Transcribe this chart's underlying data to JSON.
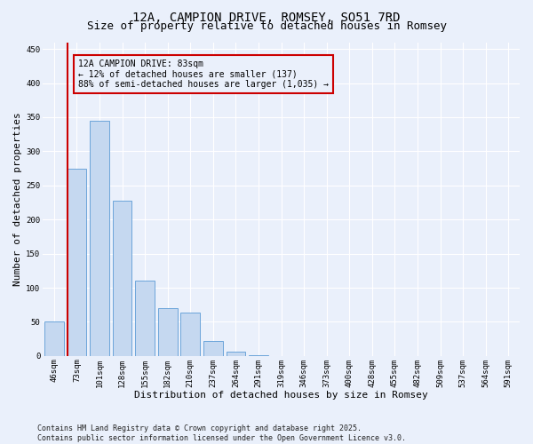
{
  "title": "12A, CAMPION DRIVE, ROMSEY, SO51 7RD",
  "subtitle": "Size of property relative to detached houses in Romsey",
  "xlabel": "Distribution of detached houses by size in Romsey",
  "ylabel": "Number of detached properties",
  "categories": [
    "46sqm",
    "73sqm",
    "101sqm",
    "128sqm",
    "155sqm",
    "182sqm",
    "210sqm",
    "237sqm",
    "264sqm",
    "291sqm",
    "319sqm",
    "346sqm",
    "373sqm",
    "400sqm",
    "428sqm",
    "455sqm",
    "482sqm",
    "509sqm",
    "537sqm",
    "564sqm",
    "591sqm"
  ],
  "values": [
    50,
    275,
    345,
    227,
    110,
    70,
    63,
    22,
    6,
    1,
    0,
    0,
    0,
    0,
    0,
    0,
    0,
    0,
    0,
    0,
    0
  ],
  "bar_color": "#c5d8f0",
  "bar_edge_color": "#5b9bd5",
  "background_color": "#eaf0fb",
  "grid_color": "#ffffff",
  "property_line_color": "#cc0000",
  "annotation_text": "12A CAMPION DRIVE: 83sqm\n← 12% of detached houses are smaller (137)\n88% of semi-detached houses are larger (1,035) →",
  "annotation_box_color": "#cc0000",
  "ylim": [
    0,
    460
  ],
  "yticks": [
    0,
    50,
    100,
    150,
    200,
    250,
    300,
    350,
    400,
    450
  ],
  "footer_text": "Contains HM Land Registry data © Crown copyright and database right 2025.\nContains public sector information licensed under the Open Government Licence v3.0.",
  "title_fontsize": 10,
  "subtitle_fontsize": 9,
  "axis_label_fontsize": 8,
  "tick_fontsize": 6.5,
  "annotation_fontsize": 7,
  "footer_fontsize": 6
}
